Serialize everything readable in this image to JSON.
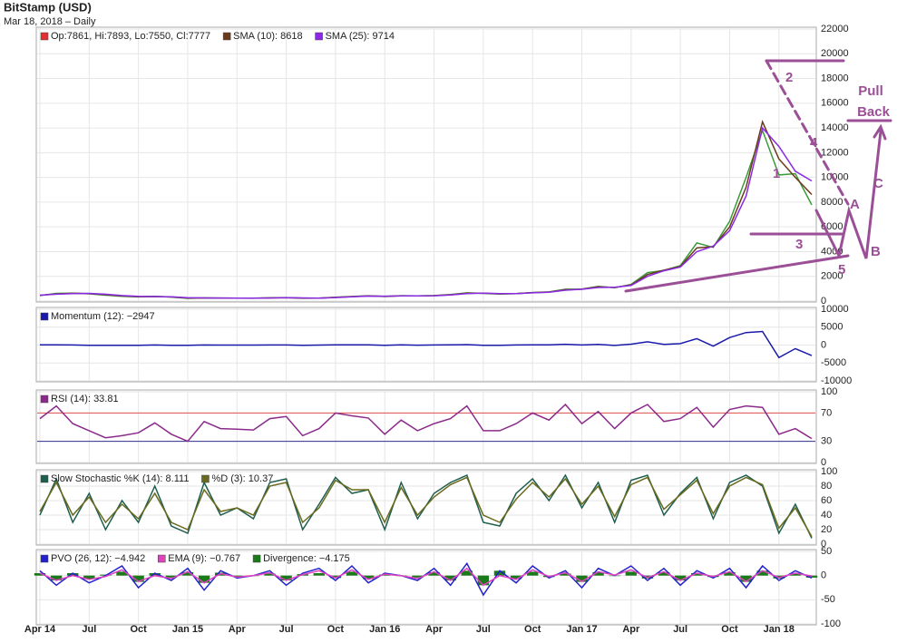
{
  "chart_data": [
    {
      "type": "line",
      "title": "BitStamp (USD)",
      "subtitle": "Mar 18, 2018 – Daily",
      "x": [
        "2014-04",
        "2014-05",
        "2014-06",
        "2014-07",
        "2014-08",
        "2014-09",
        "2014-10",
        "2014-11",
        "2014-12",
        "2015-01",
        "2015-02",
        "2015-03",
        "2015-04",
        "2015-05",
        "2015-06",
        "2015-07",
        "2015-08",
        "2015-09",
        "2015-10",
        "2015-11",
        "2015-12",
        "2016-01",
        "2016-02",
        "2016-03",
        "2016-04",
        "2016-05",
        "2016-06",
        "2016-07",
        "2016-08",
        "2016-09",
        "2016-10",
        "2016-11",
        "2016-12",
        "2017-01",
        "2017-02",
        "2017-03",
        "2017-04",
        "2017-05",
        "2017-06",
        "2017-07",
        "2017-08",
        "2017-09",
        "2017-10",
        "2017-11",
        "2017-12",
        "2018-01",
        "2018-02",
        "2018-03"
      ],
      "xlim": [
        "2014-04",
        "2018-03"
      ],
      "xticks": [
        {
          "value": "2014-04",
          "label": "Apr 14"
        },
        {
          "value": "2014-07",
          "label": "Jul"
        },
        {
          "value": "2014-10",
          "label": "Oct"
        },
        {
          "value": "2015-01",
          "label": "Jan 15"
        },
        {
          "value": "2015-04",
          "label": "Apr"
        },
        {
          "value": "2015-07",
          "label": "Jul"
        },
        {
          "value": "2015-10",
          "label": "Oct"
        },
        {
          "value": "2016-01",
          "label": "Jan 16"
        },
        {
          "value": "2016-04",
          "label": "Apr"
        },
        {
          "value": "2016-07",
          "label": "Jul"
        },
        {
          "value": "2016-10",
          "label": "Oct"
        },
        {
          "value": "2017-01",
          "label": "Jan 17"
        },
        {
          "value": "2017-04",
          "label": "Apr"
        },
        {
          "value": "2017-07",
          "label": "Jul"
        },
        {
          "value": "2017-10",
          "label": "Oct"
        },
        {
          "value": "2018-01",
          "label": "Jan 18"
        }
      ],
      "ylim": [
        0,
        22000
      ],
      "yticks": [
        0,
        2000,
        4000,
        6000,
        8000,
        10000,
        12000,
        14000,
        16000,
        18000,
        20000,
        22000
      ],
      "series": [
        {
          "name": "Op:7861, Hi:7893, Lo:7550, Cl:7777",
          "color": "#e03030",
          "line_color": "#3c9a3c",
          "values": [
            450,
            620,
            640,
            590,
            480,
            390,
            340,
            380,
            320,
            220,
            255,
            245,
            235,
            230,
            265,
            285,
            230,
            236,
            315,
            377,
            430,
            370,
            437,
            416,
            448,
            530,
            670,
            624,
            575,
            608,
            700,
            740,
            963,
            970,
            1190,
            1080,
            1350,
            2300,
            2480,
            2870,
            4700,
            4340,
            6450,
            10000,
            13800,
            10200,
            10300,
            7777
          ]
        },
        {
          "name": "SMA (10): 8618",
          "color": "#6b3a1a",
          "values": [
            470,
            580,
            630,
            610,
            520,
            420,
            360,
            370,
            340,
            250,
            250,
            248,
            238,
            232,
            255,
            280,
            245,
            235,
            300,
            360,
            420,
            385,
            425,
            420,
            440,
            510,
            640,
            640,
            590,
            600,
            680,
            730,
            920,
            960,
            1150,
            1100,
            1300,
            2150,
            2500,
            2800,
            4300,
            4400,
            6000,
            9200,
            14500,
            11500,
            10000,
            8618
          ]
        },
        {
          "name": "SMA (25): 9714",
          "color": "#8a2be2",
          "values": [
            480,
            560,
            610,
            620,
            560,
            450,
            380,
            370,
            350,
            280,
            255,
            250,
            242,
            235,
            248,
            272,
            255,
            240,
            285,
            345,
            405,
            395,
            415,
            422,
            435,
            490,
            610,
            645,
            605,
            600,
            665,
            720,
            880,
            950,
            1100,
            1120,
            1260,
            2000,
            2450,
            2750,
            4000,
            4450,
            5700,
            8500,
            14000,
            12500,
            10500,
            9714
          ]
        }
      ],
      "annotations": [
        "1",
        "2",
        "3",
        "4",
        "5",
        "A",
        "B",
        "C",
        "Pull",
        "Back"
      ]
    },
    {
      "type": "line",
      "ylim": [
        -10000,
        10000
      ],
      "yticks": [
        -10000,
        -5000,
        0,
        5000,
        10000
      ],
      "series": [
        {
          "name": "Momentum (12): −2947",
          "color": "#1a1aaa",
          "values": [
            50,
            80,
            20,
            -50,
            -80,
            -60,
            -40,
            30,
            -50,
            -80,
            20,
            -10,
            -10,
            0,
            30,
            20,
            -40,
            10,
            70,
            60,
            50,
            -50,
            60,
            -20,
            30,
            80,
            130,
            -40,
            -40,
            30,
            80,
            40,
            220,
            30,
            200,
            -100,
            260,
            900,
            200,
            400,
            1800,
            -300,
            2100,
            3500,
            3800,
            -3500,
            -1000,
            -2947
          ]
        }
      ]
    },
    {
      "type": "line",
      "ylim": [
        0,
        100
      ],
      "yticks": [
        0,
        30,
        70,
        100
      ],
      "hlines": [
        {
          "value": 70,
          "color": "#e05050"
        },
        {
          "value": 30,
          "color": "#303090"
        }
      ],
      "series": [
        {
          "name": "RSI (14): 33.81",
          "color": "#8b2a8b",
          "values": [
            62,
            80,
            55,
            45,
            35,
            38,
            42,
            56,
            40,
            30,
            58,
            48,
            47,
            46,
            62,
            65,
            38,
            48,
            70,
            66,
            63,
            40,
            60,
            45,
            55,
            62,
            80,
            45,
            45,
            55,
            70,
            60,
            82,
            55,
            72,
            48,
            70,
            82,
            58,
            62,
            78,
            50,
            75,
            80,
            78,
            40,
            48,
            33.81
          ]
        }
      ]
    },
    {
      "type": "line",
      "ylim": [
        0,
        100
      ],
      "yticks": [
        0,
        20,
        40,
        60,
        80,
        100
      ],
      "series": [
        {
          "name": "Slow Stochastic %K (14): 8.111",
          "color": "#1e5e4e",
          "values": [
            40,
            90,
            30,
            70,
            20,
            60,
            30,
            80,
            25,
            15,
            85,
            40,
            50,
            35,
            85,
            90,
            20,
            55,
            92,
            70,
            75,
            20,
            85,
            35,
            70,
            85,
            95,
            30,
            25,
            70,
            90,
            60,
            95,
            50,
            85,
            30,
            88,
            95,
            40,
            70,
            92,
            35,
            85,
            95,
            80,
            15,
            55,
            8.111
          ]
        },
        {
          "name": "%D (3): 10.37",
          "color": "#6a6a1e",
          "values": [
            45,
            85,
            40,
            65,
            30,
            55,
            35,
            70,
            30,
            20,
            75,
            45,
            50,
            40,
            80,
            85,
            30,
            50,
            88,
            75,
            75,
            30,
            78,
            40,
            65,
            82,
            92,
            40,
            30,
            62,
            85,
            65,
            90,
            55,
            80,
            38,
            82,
            92,
            48,
            68,
            88,
            42,
            80,
            92,
            82,
            22,
            50,
            10.37
          ]
        }
      ]
    },
    {
      "type": "line",
      "ylim": [
        -100,
        50
      ],
      "yticks": [
        -100,
        -50,
        0,
        50
      ],
      "series": [
        {
          "name": "Divergence: −4.175",
          "color": "#1a7a1a",
          "style": "bar",
          "values": [
            5,
            -10,
            5,
            -7,
            2,
            8,
            -13,
            5,
            -4,
            7,
            -15,
            6,
            -2,
            0,
            4,
            -10,
            3,
            5,
            -5,
            8,
            -7,
            2,
            0,
            -4,
            7,
            -10,
            10,
            -20,
            10,
            -7,
            8,
            -3,
            4,
            -13,
            7,
            -1,
            8,
            -6,
            7,
            -10,
            5,
            -3,
            7,
            -13,
            10,
            -6,
            5,
            -4.175
          ]
        },
        {
          "name": "PVO (26, 12): −4.942",
          "color": "#2222cc",
          "values": [
            10,
            -20,
            5,
            -15,
            0,
            20,
            -25,
            5,
            -10,
            15,
            -30,
            10,
            -5,
            0,
            10,
            -20,
            5,
            15,
            -10,
            20,
            -15,
            5,
            0,
            -10,
            15,
            -20,
            25,
            -40,
            10,
            -15,
            20,
            -5,
            10,
            -25,
            15,
            0,
            20,
            -10,
            15,
            -20,
            10,
            -5,
            15,
            -25,
            20,
            -10,
            10,
            -4.942
          ]
        },
        {
          "name": "EMA (9): −0.767",
          "color": "#e040c0",
          "values": [
            5,
            -10,
            0,
            -8,
            -2,
            12,
            -12,
            0,
            -6,
            8,
            -15,
            4,
            -3,
            0,
            6,
            -10,
            2,
            10,
            -5,
            12,
            -8,
            3,
            0,
            -6,
            8,
            -10,
            15,
            -20,
            0,
            -8,
            12,
            -2,
            6,
            -12,
            8,
            1,
            12,
            -4,
            8,
            -10,
            5,
            -2,
            8,
            -12,
            10,
            -4,
            5,
            -0.767
          ]
        }
      ],
      "legend_order": [
        1,
        2,
        0
      ]
    }
  ]
}
